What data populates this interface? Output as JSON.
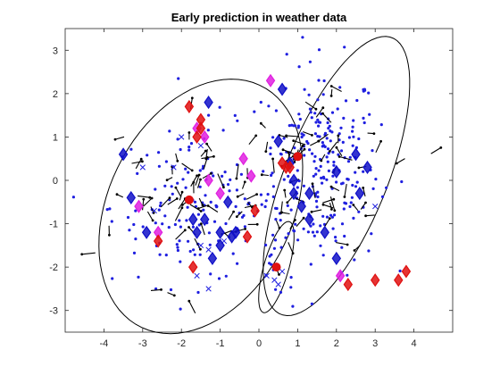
{
  "chart_data": {
    "type": "scatter",
    "title": "Early prediction in weather data",
    "xlabel": "",
    "ylabel": "",
    "xlim": [
      -5,
      5
    ],
    "ylim": [
      -3.5,
      3.5
    ],
    "xticks": [
      -4,
      -3,
      -2,
      -1,
      0,
      1,
      2,
      3,
      4
    ],
    "yticks": [
      -3,
      -2,
      -1,
      0,
      1,
      2,
      3
    ],
    "grid": false,
    "legend": "none",
    "colors": {
      "blue_points": "#1f1fe0",
      "blue_diamonds": "#1010c8",
      "red_markers": "#e01010",
      "magenta_markers": "#e020e0",
      "arrows": "#000000",
      "ellipses": "#000000"
    },
    "ellipses": [
      {
        "cx": -1.5,
        "cy": -0.6,
        "rx": 2.3,
        "ry": 3.2,
        "angle_deg": 35
      },
      {
        "cx": 2.0,
        "cy": 0.1,
        "rx": 1.3,
        "ry": 3.5,
        "angle_deg": 25
      },
      {
        "cx": 0.45,
        "cy": -2.0,
        "rx": 0.32,
        "ry": 1.1,
        "angle_deg": 18
      }
    ],
    "cluster_centers": [
      {
        "x": -1.8,
        "y": -0.45
      },
      {
        "x": 1.0,
        "y": 0.55
      },
      {
        "x": 0.45,
        "y": -2.0
      }
    ],
    "blue_diamonds": [
      [
        -1.3,
        1.8
      ],
      [
        -3.5,
        0.6
      ],
      [
        -3.3,
        -0.4
      ],
      [
        -1.4,
        -0.9
      ],
      [
        -0.8,
        -0.5
      ],
      [
        -1.7,
        -0.9
      ],
      [
        -1.0,
        -1.2
      ],
      [
        -0.7,
        -1.3
      ],
      [
        -1.2,
        -1.8
      ],
      [
        -1.0,
        -1.5
      ],
      [
        -0.6,
        -1.2
      ],
      [
        0.5,
        0.9
      ],
      [
        0.8,
        0.4
      ],
      [
        0.9,
        0.0
      ],
      [
        0.9,
        -0.3
      ],
      [
        1.1,
        -0.6
      ],
      [
        1.3,
        -0.9
      ],
      [
        1.7,
        -1.2
      ],
      [
        2.0,
        0.2
      ],
      [
        2.5,
        0.6
      ],
      [
        2.8,
        0.3
      ],
      [
        1.3,
        -0.3
      ],
      [
        0.6,
        2.1
      ],
      [
        2.0,
        -1.8
      ],
      [
        2.6,
        -0.3
      ],
      [
        -2.9,
        -1.2
      ],
      [
        -1.6,
        -1.2
      ]
    ],
    "red_diamonds": [
      [
        -1.8,
        1.7
      ],
      [
        -1.5,
        1.4
      ],
      [
        -1.5,
        1.2
      ],
      [
        -1.6,
        1.0
      ],
      [
        -0.1,
        -0.7
      ],
      [
        -2.6,
        -1.4
      ],
      [
        -1.7,
        -2.0
      ],
      [
        0.6,
        0.4
      ],
      [
        0.8,
        0.3
      ],
      [
        2.3,
        -2.4
      ],
      [
        3.0,
        -2.3
      ],
      [
        3.6,
        -2.3
      ],
      [
        3.8,
        -2.1
      ],
      [
        -0.3,
        -1.3
      ],
      [
        0.7,
        0.3
      ]
    ],
    "magenta_diamonds": [
      [
        -1.6,
        1.2
      ],
      [
        -1.4,
        1.0
      ],
      [
        -3.1,
        -0.6
      ],
      [
        -2.6,
        -1.2
      ],
      [
        -1.3,
        0.0
      ],
      [
        -0.4,
        0.5
      ],
      [
        -0.2,
        0.1
      ],
      [
        0.3,
        2.3
      ],
      [
        2.1,
        -2.2
      ],
      [
        -1.0,
        -0.3
      ]
    ],
    "blue_crosses": [
      [
        -2.0,
        1.0
      ],
      [
        -1.5,
        0.8
      ],
      [
        -2.2,
        0.3
      ],
      [
        -1.5,
        -1.5
      ],
      [
        -1.3,
        -1.6
      ],
      [
        -1.6,
        -2.2
      ],
      [
        -1.3,
        -2.5
      ],
      [
        -0.9,
        -1.4
      ],
      [
        0.2,
        -2.2
      ],
      [
        0.4,
        -2.3
      ],
      [
        0.6,
        -2.1
      ],
      [
        0.5,
        -2.4
      ],
      [
        -3.0,
        0.3
      ],
      [
        -2.7,
        -0.7
      ],
      [
        3.0,
        -0.6
      ]
    ],
    "blue_points_note": "dense point clouds drawn procedurally around the ellipse centers",
    "arrow_count": 120
  }
}
